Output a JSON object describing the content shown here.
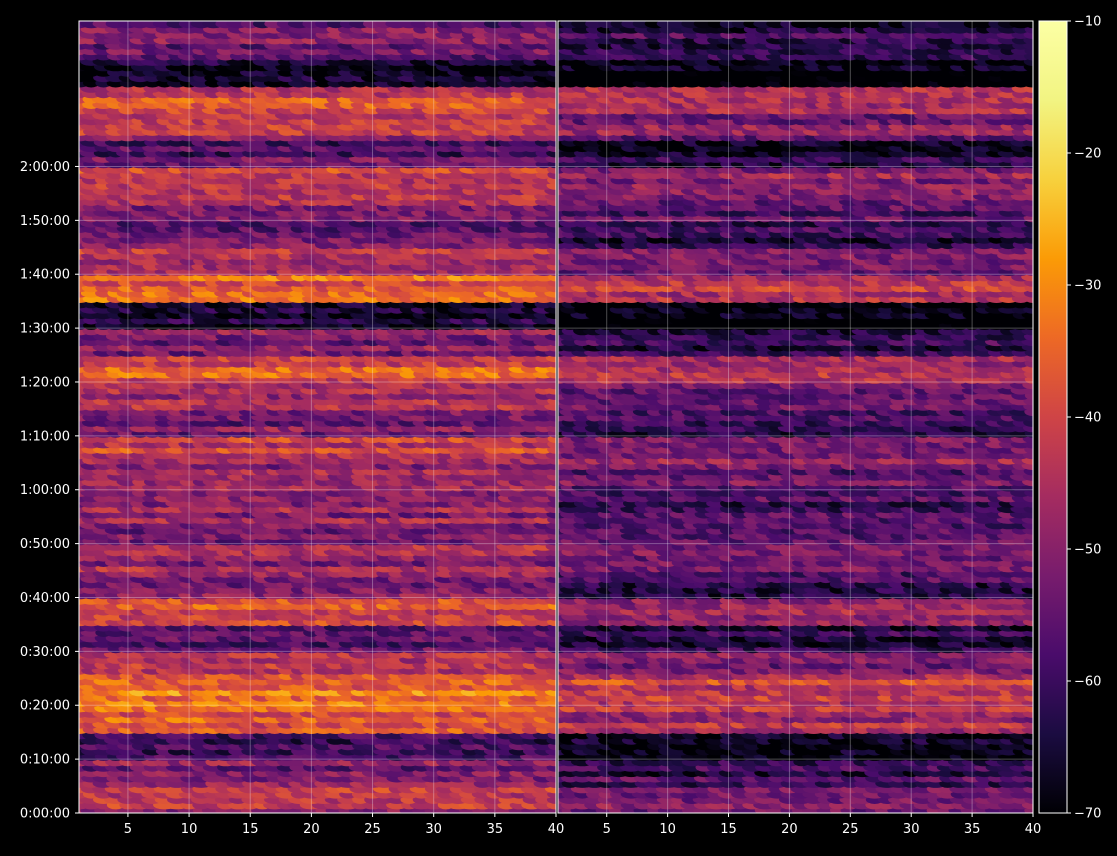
{
  "chart_data": [
    {
      "type": "heatmap",
      "title": "",
      "xlabel": "",
      "ylabel": "",
      "xlim": [
        1,
        40
      ],
      "ylim": [
        0,
        8820
      ],
      "x_ticks": [
        "5",
        "10",
        "15",
        "20",
        "25",
        "30",
        "35",
        "40"
      ],
      "y_ticks": [
        "0:00:00",
        "0:10:00",
        "0:20:00",
        "0:30:00",
        "0:40:00",
        "0:50:00",
        "1:00:00",
        "1:10:00",
        "1:20:00",
        "1:30:00",
        "1:40:00",
        "1:50:00",
        "2:00:00"
      ],
      "grid": true,
      "row_levels": [
        {
          "t": 0,
          "dB": -45
        },
        {
          "t": 300,
          "dB": -52
        },
        {
          "t": 600,
          "dB": -62
        },
        {
          "t": 900,
          "dB": -38
        },
        {
          "t": 1200,
          "dB": -33
        },
        {
          "t": 1500,
          "dB": -42
        },
        {
          "t": 1800,
          "dB": -56
        },
        {
          "t": 2100,
          "dB": -38
        },
        {
          "t": 2400,
          "dB": -52
        },
        {
          "t": 2700,
          "dB": -48
        },
        {
          "t": 3000,
          "dB": -50
        },
        {
          "t": 3300,
          "dB": -50
        },
        {
          "t": 3600,
          "dB": -48
        },
        {
          "t": 3900,
          "dB": -42
        },
        {
          "t": 4200,
          "dB": -52
        },
        {
          "t": 4500,
          "dB": -46
        },
        {
          "t": 4800,
          "dB": -38
        },
        {
          "t": 5100,
          "dB": -52
        },
        {
          "t": 5400,
          "dB": -64
        },
        {
          "t": 5700,
          "dB": -35
        },
        {
          "t": 6000,
          "dB": -42
        },
        {
          "t": 6300,
          "dB": -55
        },
        {
          "t": 6600,
          "dB": -48
        },
        {
          "t": 6900,
          "dB": -42
        },
        {
          "t": 7200,
          "dB": -56
        },
        {
          "t": 7500,
          "dB": -44
        },
        {
          "t": 7800,
          "dB": -40
        },
        {
          "t": 8100,
          "dB": -64
        },
        {
          "t": 8400,
          "dB": -52
        },
        {
          "t": 8700,
          "dB": -55
        }
      ]
    },
    {
      "type": "heatmap",
      "title": "",
      "xlabel": "",
      "ylabel": "",
      "xlim": [
        1,
        40
      ],
      "ylim": [
        0,
        8820
      ],
      "x_ticks": [
        "5",
        "10",
        "15",
        "20",
        "25",
        "30",
        "35",
        "40"
      ],
      "y_ticks": [],
      "grid": true,
      "row_offset_dB": -8
    }
  ],
  "colorbar": {
    "cmap": "inferno",
    "range": [
      -70,
      -10
    ],
    "ticks": [
      "−10",
      "−20",
      "−30",
      "−40",
      "−50",
      "−60",
      "−70"
    ]
  }
}
